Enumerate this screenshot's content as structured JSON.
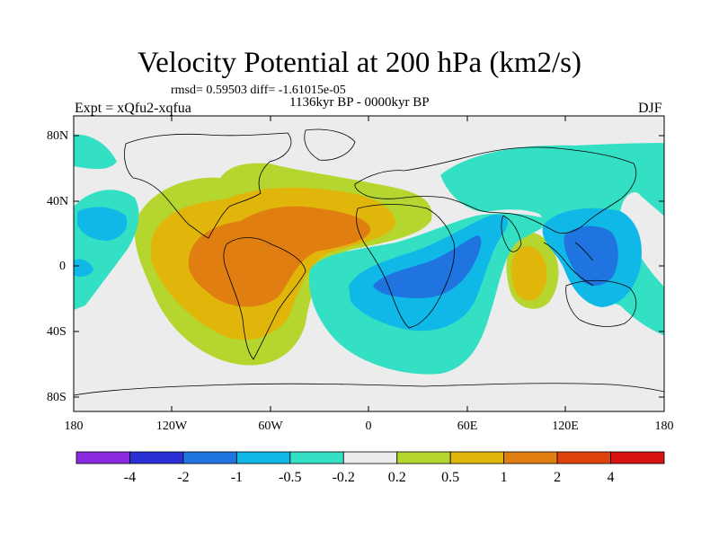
{
  "title": "Velocity Potential at 200 hPa (km2/s)",
  "stats": "rmsd= 0.59503 diff= -1.61015e-05",
  "period": "1136kyr BP - 0000kyr BP",
  "experiment": "Expt = xQfu2-xqfua",
  "season": "DJF",
  "axes": {
    "lat_labels": [
      "80N",
      "40N",
      "0",
      "40S",
      "80S"
    ],
    "lon_labels": [
      "180",
      "120W",
      "60W",
      "0",
      "60E",
      "120E",
      "180"
    ]
  },
  "colorbar": {
    "labels": [
      "-4",
      "-2",
      "-1",
      "-0.5",
      "-0.2",
      "0.2",
      "0.5",
      "1",
      "2",
      "4"
    ],
    "colors": [
      "#8a2be2",
      "#2a2fd6",
      "#1f74e0",
      "#10b8e8",
      "#34e0c4",
      "#ececec",
      "#b4d62e",
      "#e0b60a",
      "#e07e12",
      "#e0420e",
      "#d81212"
    ]
  },
  "chart_data": {
    "type": "heatmap",
    "title": "Velocity Potential at 200 hPa (km2/s)",
    "xlabel": "",
    "ylabel": "",
    "xlim": [
      -180,
      180
    ],
    "ylim": [
      -90,
      90
    ],
    "levels": [
      -4,
      -2,
      -1,
      -0.5,
      -0.2,
      0.2,
      0.5,
      1,
      2,
      4
    ],
    "features": [
      {
        "type": "positive",
        "center": [
          -75,
          0
        ],
        "peak": 2
      },
      {
        "type": "positive",
        "center": [
          95,
          -5
        ],
        "peak": 1
      },
      {
        "type": "negative",
        "center": [
          30,
          -15
        ],
        "peak": -1
      },
      {
        "type": "negative",
        "center": [
          140,
          10
        ],
        "peak": -1
      },
      {
        "type": "negative",
        "center": [
          -158,
          25
        ],
        "peak": -0.5
      }
    ]
  }
}
